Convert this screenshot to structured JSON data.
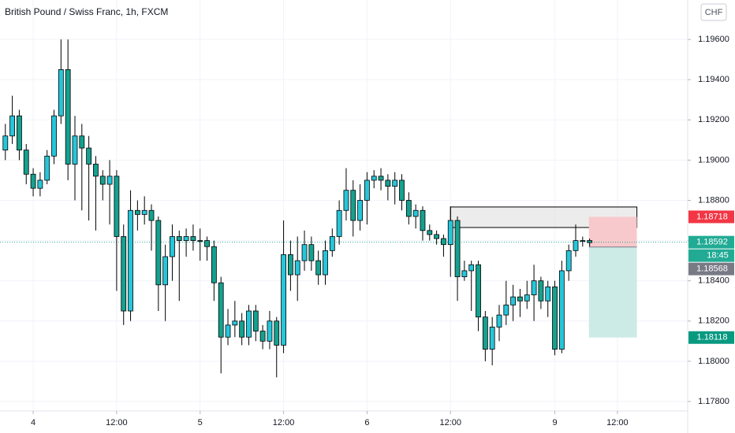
{
  "chart_data": {
    "type": "candlestick",
    "title": "British Pound / Swiss Franc, 1h, FXCM",
    "currency": "CHF",
    "up_color": "#26c6da",
    "down_color": "#15a18f",
    "wick_color": "#000000",
    "grid": true,
    "x": [
      -4,
      -3,
      -2,
      -1,
      0,
      1,
      2,
      3,
      4,
      5,
      6,
      7,
      8,
      9,
      10,
      11,
      12,
      13,
      14,
      15,
      16,
      17,
      18,
      19,
      20,
      21,
      22,
      23,
      24,
      25,
      26,
      27,
      28,
      29,
      30,
      31,
      32,
      33,
      34,
      35,
      36,
      37,
      38,
      39,
      40,
      41,
      42,
      43,
      44,
      45,
      46,
      47,
      48,
      49,
      50,
      51,
      52,
      53,
      54,
      55,
      56,
      57,
      58,
      59,
      60,
      61,
      62,
      63,
      64,
      65,
      66,
      67,
      68,
      69,
      70,
      71,
      72,
      73,
      74,
      75,
      76,
      77,
      78,
      79,
      80
    ],
    "open": [
      1.1905,
      1.1912,
      1.1922,
      1.1905,
      1.1893,
      1.1886,
      1.189,
      1.1902,
      1.1922,
      1.1945,
      1.1898,
      1.1912,
      1.1906,
      1.1898,
      1.1892,
      1.1888,
      1.1892,
      1.1862,
      1.1825,
      1.1875,
      1.1873,
      1.1875,
      1.187,
      1.1838,
      1.1852,
      1.1862,
      1.186,
      1.1862,
      1.186,
      1.186,
      1.1857,
      1.1839,
      1.1812,
      1.1818,
      1.182,
      1.1812,
      1.1825,
      1.1815,
      1.181,
      1.182,
      1.1808,
      1.1853,
      1.1843,
      1.185,
      1.1858,
      1.185,
      1.1843,
      1.1855,
      1.1862,
      1.1875,
      1.1885,
      1.187,
      1.188,
      1.189,
      1.1892,
      1.189,
      1.1887,
      1.189,
      1.188,
      1.1872,
      1.1875,
      1.1865,
      1.1863,
      1.1861,
      1.1858,
      1.187,
      1.1842,
      1.1845,
      1.1848,
      1.1822,
      1.1806,
      1.1817,
      1.1823,
      1.1828,
      1.1832,
      1.183,
      1.1833,
      1.184,
      1.183,
      1.1837,
      1.1806,
      1.1845,
      1.1855,
      1.186,
      1.186
    ],
    "high": [
      1.1918,
      1.1932,
      1.1925,
      1.1908,
      1.1896,
      1.1894,
      1.1905,
      1.1925,
      1.196,
      1.196,
      1.1922,
      1.1918,
      1.1912,
      1.1902,
      1.1895,
      1.19,
      1.1895,
      1.1868,
      1.1885,
      1.188,
      1.1882,
      1.1878,
      1.1872,
      1.1858,
      1.1868,
      1.1865,
      1.1866,
      1.1868,
      1.1866,
      1.1862,
      1.186,
      1.1842,
      1.1826,
      1.183,
      1.1824,
      1.1828,
      1.1828,
      1.1818,
      1.1825,
      1.1822,
      1.187,
      1.186,
      1.1862,
      1.1865,
      1.1862,
      1.1855,
      1.186,
      1.1866,
      1.188,
      1.1896,
      1.189,
      1.1888,
      1.1894,
      1.1895,
      1.1896,
      1.1893,
      1.1894,
      1.1893,
      1.1884,
      1.1878,
      1.1877,
      1.1868,
      1.1865,
      1.1863,
      1.1877,
      1.1872,
      1.185,
      1.185,
      1.185,
      1.1825,
      1.1822,
      1.1828,
      1.184,
      1.1838,
      1.1836,
      1.184,
      1.1848,
      1.1842,
      1.184,
      1.184,
      1.185,
      1.1858,
      1.1868,
      1.1862,
      1.1861
    ],
    "low": [
      1.19,
      1.1908,
      1.19,
      1.1888,
      1.1882,
      1.1882,
      1.1888,
      1.1898,
      1.1918,
      1.189,
      1.188,
      1.1875,
      1.187,
      1.1865,
      1.188,
      1.1868,
      1.1835,
      1.1818,
      1.182,
      1.1865,
      1.1868,
      1.1855,
      1.1825,
      1.182,
      1.184,
      1.183,
      1.1852,
      1.1855,
      1.185,
      1.185,
      1.183,
      1.1794,
      1.1808,
      1.1812,
      1.1808,
      1.1808,
      1.181,
      1.1806,
      1.1806,
      1.1792,
      1.1804,
      1.1835,
      1.183,
      1.1845,
      1.1845,
      1.1838,
      1.1838,
      1.1852,
      1.1858,
      1.187,
      1.1862,
      1.1865,
      1.1868,
      1.1886,
      1.1885,
      1.188,
      1.1878,
      1.1875,
      1.1868,
      1.1866,
      1.186,
      1.186,
      1.1858,
      1.1852,
      1.1842,
      1.183,
      1.184,
      1.1825,
      1.1815,
      1.18,
      1.1798,
      1.181,
      1.1818,
      1.182,
      1.1822,
      1.1826,
      1.182,
      1.1826,
      1.1822,
      1.1803,
      1.1804,
      1.184,
      1.1852,
      1.1857,
      1.1857
    ],
    "close": [
      1.1912,
      1.1922,
      1.1905,
      1.1893,
      1.1886,
      1.189,
      1.1902,
      1.1922,
      1.1945,
      1.1898,
      1.1912,
      1.1906,
      1.1898,
      1.1892,
      1.1888,
      1.1892,
      1.1862,
      1.1825,
      1.1875,
      1.1873,
      1.1875,
      1.187,
      1.1838,
      1.1852,
      1.1862,
      1.186,
      1.1862,
      1.186,
      1.186,
      1.1857,
      1.1839,
      1.1812,
      1.1818,
      1.182,
      1.1812,
      1.1825,
      1.1815,
      1.181,
      1.182,
      1.1808,
      1.1853,
      1.1843,
      1.185,
      1.1858,
      1.185,
      1.1843,
      1.1855,
      1.1862,
      1.1875,
      1.1885,
      1.187,
      1.188,
      1.189,
      1.1892,
      1.189,
      1.1887,
      1.189,
      1.188,
      1.1872,
      1.1875,
      1.1865,
      1.1863,
      1.1861,
      1.1858,
      1.187,
      1.1842,
      1.1845,
      1.1848,
      1.1822,
      1.1806,
      1.1817,
      1.1823,
      1.1828,
      1.1832,
      1.183,
      1.1833,
      1.184,
      1.183,
      1.1837,
      1.1806,
      1.1845,
      1.1855,
      1.186,
      1.186,
      1.1859
    ],
    "xlim": [
      -4.77,
      94.1
    ],
    "xticks": [
      {
        "value": 0,
        "label": "4"
      },
      {
        "value": 12,
        "label": "12:00"
      },
      {
        "value": 24,
        "label": "5"
      },
      {
        "value": 36,
        "label": "12:00"
      },
      {
        "value": 48,
        "label": "6"
      },
      {
        "value": 60,
        "label": "12:00"
      },
      {
        "value": 75,
        "label": "9"
      },
      {
        "value": 84,
        "label": "12:00"
      }
    ],
    "ylim": [
      1.17753,
      1.19796
    ],
    "yticks": [
      {
        "value": 1.178,
        "label": "1.17800"
      },
      {
        "value": 1.18,
        "label": "1.18000"
      },
      {
        "value": 1.182,
        "label": "1.18200"
      },
      {
        "value": 1.184,
        "label": "1.18400"
      },
      {
        "value": 1.186,
        "label": "1.18600"
      },
      {
        "value": 1.188,
        "label": "1.18800"
      },
      {
        "value": 1.19,
        "label": "1.19000"
      },
      {
        "value": 1.192,
        "label": "1.19200"
      },
      {
        "value": 1.194,
        "label": "1.19400"
      },
      {
        "value": 1.196,
        "label": "1.19600"
      }
    ],
    "zone": {
      "top": 1.18767,
      "bottom": 1.18665,
      "x_start": 60,
      "x_end": 86.8,
      "color": "#e0e0e0"
    },
    "position": {
      "stop": 1.18718,
      "entry": 1.18568,
      "target": 1.18118,
      "x_start": 79.9,
      "x_end": 86.8,
      "stop_color": "#f8c9cc",
      "target_color": "#cdebe6"
    },
    "current_price": {
      "value": 1.18592,
      "color": "#22ab94",
      "countdown": "18:45"
    },
    "price_labels": [
      {
        "value": 1.18718,
        "color": "#f23645"
      },
      {
        "value": 1.18568,
        "color": "#787b86"
      },
      {
        "value": 1.18118,
        "color": "#089981"
      }
    ]
  }
}
